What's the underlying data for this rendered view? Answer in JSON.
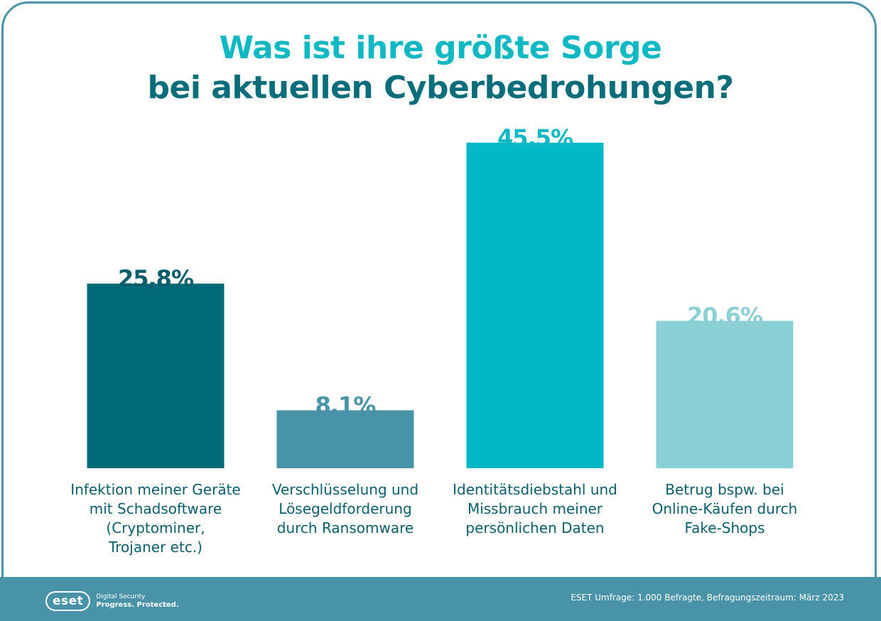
{
  "title": {
    "line1": "Was ist ihre größte Sorge",
    "line2": "bei aktuellen Cyberbedrohungen?"
  },
  "chart_data": {
    "type": "bar",
    "title": "Was ist ihre größte Sorge bei aktuellen Cyberbedrohungen?",
    "categories": [
      "Infektion meiner Geräte mit Schadsoftware (Cryptominer, Trojaner etc.)",
      "Verschlüsselung und Lösegeldforderung durch Ransomware",
      "Identitätsdiebstahl und Missbrauch meiner persönlichen Daten",
      "Betrug bspw. bei Online-Käufen durch Fake-Shops"
    ],
    "values": [
      25.8,
      8.1,
      45.5,
      20.6
    ],
    "value_labels": [
      "25,8%",
      "8,1%",
      "45,5%",
      "20,6%"
    ],
    "category_labels": [
      "Infektion meiner Geräte\nmit Schadsoftware\n(Cryptominer,\nTrojaner etc.)",
      "Verschlüsselung und\nLösegeldforderung\ndurch Ransomware",
      "Identitätsdiebstahl und\nMissbrauch meiner\npersönlichen Daten",
      "Betrug bspw. bei\nOnline-Käufen durch\nFake-Shops"
    ],
    "colors": [
      "#006a78",
      "#4893a8",
      "#00b8c6",
      "#8ad0d5"
    ],
    "value_label_colors": [
      "#0b5d6a",
      "#4893a8",
      "#10b8c4",
      "#8ad0d5"
    ],
    "ylim": [
      0,
      50
    ],
    "grid": false,
    "xlabel": "",
    "ylabel": ""
  },
  "footer": {
    "logo_mark": "eset",
    "logo_tagline1": "Digital Security",
    "logo_tagline2": "Progress. Protected.",
    "source": "ESET Umfrage: 1.000 Befragte, Befragungszeitraum: März 2023"
  },
  "colors": {
    "border": "#4893a8",
    "footer": "#4893a8",
    "title_line1": "#10b8c4",
    "title_line2": "#0b6d7a"
  }
}
